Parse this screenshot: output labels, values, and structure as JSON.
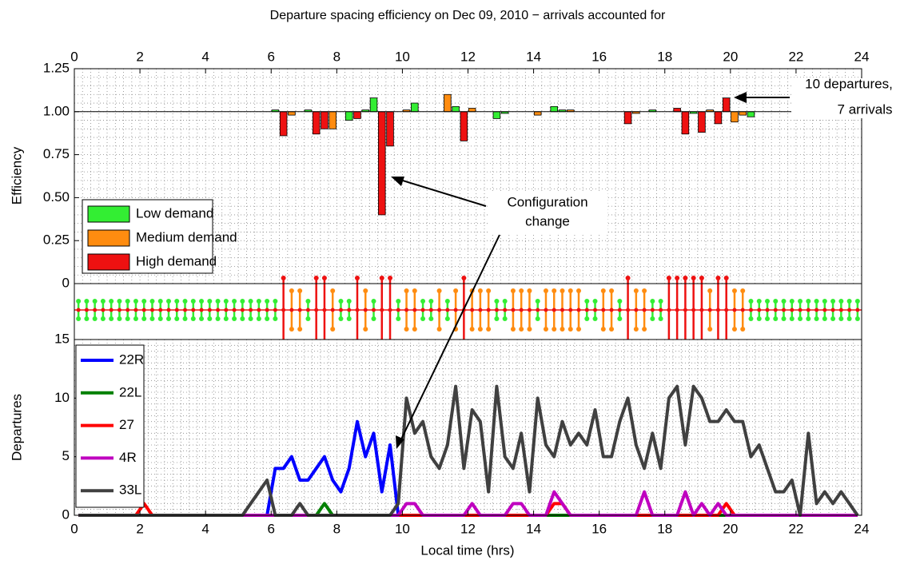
{
  "chart_data": [
    {
      "type": "bar",
      "title": "Departure spacing efficiency on Dec 09, 2010 − arrivals accounted for",
      "ylabel": "Efficiency",
      "xlim": [
        0,
        24
      ],
      "xticks": [
        0,
        2,
        4,
        6,
        8,
        10,
        12,
        14,
        16,
        18,
        20,
        22,
        24
      ],
      "ylim": [
        0,
        1.25
      ],
      "yticks": [
        0,
        0.25,
        {
          "value": 0.5,
          "label": "0.50"
        },
        0.75,
        {
          "value": 1,
          "label": "1.00"
        },
        1.25
      ],
      "baseline": 1,
      "grid": true,
      "legend": "lower left",
      "series": [
        {
          "name": "Low demand",
          "color": "#33ee33",
          "x": [
            6.125,
            7.125,
            8.375,
            8.875,
            9.125,
            10.375,
            11.625,
            12.875,
            13.125,
            14.625,
            14.875,
            17.625,
            18.875,
            20.625
          ],
          "values": [
            1.01,
            1.01,
            0.95,
            1.01,
            1.08,
            1.05,
            1.03,
            0.96,
            0.99,
            1.03,
            1.01,
            1.01,
            0.99,
            0.97
          ]
        },
        {
          "name": "Medium demand",
          "color": "#ff8c10",
          "x": [
            6.625,
            7.875,
            10.125,
            11.375,
            12.125,
            14.125,
            15.125,
            17.125,
            19.375,
            20.125,
            20.375
          ],
          "values": [
            0.98,
            0.9,
            1.01,
            1.1,
            1.02,
            0.98,
            1.01,
            0.99,
            1.01,
            0.94,
            0.98
          ]
        },
        {
          "name": "High demand",
          "color": "#ee1111",
          "x": [
            6.375,
            7.375,
            7.625,
            8.625,
            9.375,
            9.625,
            11.875,
            16.875,
            18.375,
            18.625,
            19.125,
            19.625,
            19.875
          ],
          "values": [
            0.86,
            0.87,
            0.9,
            0.96,
            0.4,
            0.8,
            0.83,
            0.93,
            1.02,
            0.87,
            0.88,
            0.93,
            1.08
          ]
        }
      ],
      "annotations": [
        {
          "text": [
            "10 departures,",
            "7 arrivals"
          ]
        },
        {
          "text": [
            "Configuration",
            "change"
          ]
        }
      ]
    },
    {
      "type": "strip",
      "levels": [
        1,
        1,
        1,
        1,
        1,
        1,
        1,
        1,
        1,
        1,
        1,
        1,
        1,
        1,
        1,
        1,
        1,
        1,
        1,
        1,
        1,
        1,
        1,
        1,
        1,
        3,
        2,
        2,
        1,
        3,
        3,
        2,
        1,
        1,
        3,
        2,
        1,
        3,
        3,
        1,
        2,
        2,
        1,
        1,
        2,
        1,
        2,
        3,
        2,
        2,
        2,
        1,
        1,
        2,
        2,
        2,
        1,
        2,
        2,
        2,
        2,
        2,
        1,
        1,
        2,
        2,
        1,
        3,
        2,
        2,
        1,
        1,
        3,
        3,
        3,
        3,
        3,
        2,
        3,
        3,
        2,
        2,
        1,
        1,
        1,
        1,
        1,
        1,
        1,
        1,
        1,
        1,
        1,
        1,
        1,
        1
      ]
    },
    {
      "type": "line",
      "xlabel": "Local time (hrs)",
      "ylabel": "Departures",
      "xlim": [
        0,
        24
      ],
      "xticks": [
        0,
        2,
        4,
        6,
        8,
        10,
        12,
        14,
        16,
        18,
        20,
        22,
        24
      ],
      "ylim": [
        0,
        15
      ],
      "yticks": [
        0,
        5,
        10,
        15
      ],
      "grid": true,
      "legend": "upper left",
      "x": [
        0.125,
        0.375,
        0.625,
        0.875,
        1.125,
        1.375,
        1.625,
        1.875,
        2.125,
        2.375,
        2.625,
        2.875,
        3.125,
        3.375,
        3.625,
        3.875,
        4.125,
        4.375,
        4.625,
        4.875,
        5.125,
        5.375,
        5.625,
        5.875,
        6.125,
        6.375,
        6.625,
        6.875,
        7.125,
        7.375,
        7.625,
        7.875,
        8.125,
        8.375,
        8.625,
        8.875,
        9.125,
        9.375,
        9.625,
        9.875,
        10.125,
        10.375,
        10.625,
        10.875,
        11.125,
        11.375,
        11.625,
        11.875,
        12.125,
        12.375,
        12.625,
        12.875,
        13.125,
        13.375,
        13.625,
        13.875,
        14.125,
        14.375,
        14.625,
        14.875,
        15.125,
        15.375,
        15.625,
        15.875,
        16.125,
        16.375,
        16.625,
        16.875,
        17.125,
        17.375,
        17.625,
        17.875,
        18.125,
        18.375,
        18.625,
        18.875,
        19.125,
        19.375,
        19.625,
        19.875,
        20.125,
        20.375,
        20.625,
        20.875,
        21.125,
        21.375,
        21.625,
        21.875,
        22.125,
        22.375,
        22.625,
        22.875,
        23.125,
        23.375,
        23.625,
        23.875
      ],
      "series": [
        {
          "name": "22R",
          "color": "#0000ff",
          "values": [
            0,
            0,
            0,
            0,
            0,
            0,
            0,
            0,
            0,
            0,
            0,
            0,
            0,
            0,
            0,
            0,
            0,
            0,
            0,
            0,
            0,
            0,
            0,
            0,
            4,
            4,
            5,
            3,
            3,
            4,
            5,
            3,
            2,
            4,
            8,
            5,
            7,
            2,
            6,
            0,
            0,
            0,
            0,
            0,
            0,
            0,
            0,
            0,
            0,
            0,
            0,
            0,
            0,
            0,
            0,
            0,
            0,
            0,
            0,
            0,
            0,
            0,
            0,
            0,
            0,
            0,
            0,
            0,
            0,
            0,
            0,
            0,
            0,
            0,
            0,
            0,
            0,
            0,
            0,
            0,
            0,
            0,
            0,
            0,
            0,
            0,
            0,
            0,
            0,
            0,
            0,
            0,
            0,
            0,
            0,
            0
          ]
        },
        {
          "name": "22L",
          "color": "#008000",
          "values": [
            0,
            0,
            0,
            0,
            0,
            0,
            0,
            0,
            0,
            0,
            0,
            0,
            0,
            0,
            0,
            0,
            0,
            0,
            0,
            0,
            0,
            0,
            0,
            0,
            0,
            0,
            0,
            0,
            0,
            0,
            1,
            0,
            0,
            0,
            0,
            0,
            0,
            0,
            0,
            0,
            0,
            0,
            0,
            0,
            0,
            0,
            0,
            0,
            0,
            0,
            0,
            0,
            0,
            0,
            0,
            0,
            0,
            0,
            0,
            0,
            0,
            0,
            0,
            0,
            0,
            0,
            0,
            0,
            0,
            0,
            0,
            0,
            0,
            0,
            0,
            0,
            0,
            0,
            0,
            0,
            0,
            0,
            0,
            0,
            0,
            0,
            0,
            0,
            0,
            0,
            0,
            0,
            0,
            0,
            0,
            0
          ]
        },
        {
          "name": "27",
          "color": "#ff0000",
          "values": [
            0,
            0,
            0,
            0,
            0,
            0,
            0,
            0,
            1,
            0,
            0,
            0,
            0,
            0,
            0,
            0,
            0,
            0,
            0,
            0,
            0,
            0,
            0,
            0,
            0,
            0,
            0,
            0,
            0,
            0,
            0,
            0,
            0,
            0,
            0,
            0,
            0,
            0,
            0,
            0,
            0,
            0,
            0,
            0,
            0,
            0,
            0,
            0,
            0,
            0,
            0,
            0,
            0,
            0,
            0,
            0,
            0,
            0,
            1,
            1,
            0,
            0,
            0,
            0,
            0,
            0,
            0,
            0,
            0,
            0,
            0,
            0,
            0,
            0,
            0,
            0,
            0,
            0,
            0,
            1,
            0,
            0,
            0,
            0,
            0,
            0,
            0,
            0,
            0,
            0,
            0,
            0,
            0,
            0,
            0,
            0
          ]
        },
        {
          "name": "4R",
          "color": "#bf00bf",
          "values": [
            0,
            0,
            0,
            0,
            0,
            0,
            0,
            0,
            0,
            0,
            0,
            0,
            0,
            0,
            0,
            0,
            0,
            0,
            0,
            0,
            0,
            0,
            0,
            0,
            0,
            0,
            0,
            0,
            0,
            0,
            0,
            0,
            0,
            0,
            0,
            0,
            0,
            0,
            0,
            0,
            1,
            1,
            0,
            0,
            0,
            0,
            0,
            0,
            1,
            0,
            0,
            0,
            0,
            1,
            1,
            0,
            0,
            0,
            2,
            1,
            0,
            0,
            0,
            0,
            0,
            0,
            0,
            0,
            0,
            2,
            0,
            0,
            0,
            0,
            2,
            0,
            1,
            0,
            1,
            0,
            0,
            0,
            0,
            0,
            0,
            0,
            0,
            0,
            0,
            0,
            0,
            0,
            0,
            0,
            0,
            0
          ]
        },
        {
          "name": "33L",
          "color": "#404040",
          "values": [
            0,
            0,
            0,
            0,
            0,
            0,
            0,
            0,
            0,
            0,
            0,
            0,
            0,
            0,
            0,
            0,
            0,
            0,
            0,
            0,
            0,
            1,
            2,
            3,
            0,
            0,
            0,
            1,
            0,
            0,
            0,
            0,
            0,
            0,
            0,
            0,
            0,
            0,
            0,
            1,
            10,
            7,
            8,
            5,
            4,
            6,
            11,
            4,
            9,
            8,
            2,
            11,
            5,
            4,
            7,
            2,
            10,
            6,
            5,
            8,
            6,
            7,
            6,
            9,
            5,
            5,
            8,
            10,
            6,
            4,
            7,
            4,
            10,
            11,
            6,
            11,
            10,
            8,
            8,
            9,
            8,
            8,
            5,
            6,
            4,
            2,
            2,
            3,
            0,
            7,
            1,
            2,
            1,
            2,
            1,
            0
          ]
        }
      ]
    }
  ]
}
